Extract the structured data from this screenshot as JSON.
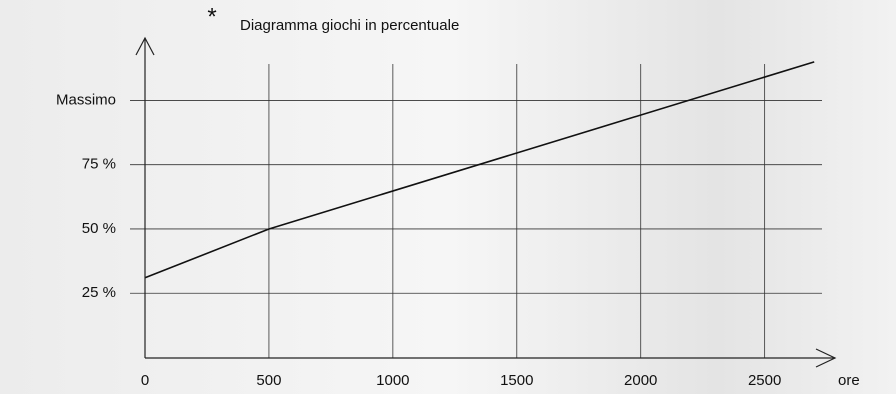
{
  "chart_data": {
    "type": "line",
    "title": "Diagramma giochi in percentuale",
    "annotation": "*",
    "x_label": "ore",
    "x": [
      0,
      500,
      2700
    ],
    "series": [
      {
        "values": [
          31,
          50,
          115
        ],
        "color": "#111111"
      }
    ],
    "xlim": [
      0,
      2800
    ],
    "xticks": [
      0,
      500,
      1000,
      1500,
      2000,
      2500
    ],
    "ylim": [
      0,
      120
    ],
    "yticks": [
      {
        "value": 25,
        "label": "25 %"
      },
      {
        "value": 50,
        "label": "50 %"
      },
      {
        "value": 75,
        "label": "75 %"
      },
      {
        "value": 100,
        "label": "Massimo"
      }
    ],
    "grid": true
  }
}
